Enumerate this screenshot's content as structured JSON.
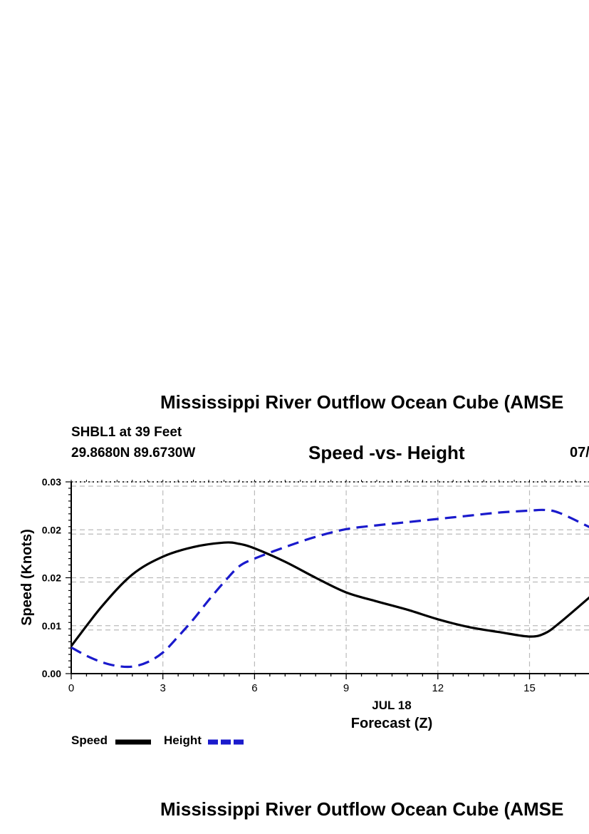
{
  "header": {
    "title": "Mississippi River Outflow Ocean Cube (AMSE",
    "station": "SHBL1 at 39 Feet",
    "coords": "29.8680N  89.6730W",
    "chart_title": "Speed -vs- Height",
    "date_fragment": "07/"
  },
  "footer": {
    "title": "Mississippi River Outflow Ocean Cube (AMSE"
  },
  "legend": {
    "speed_label": "Speed",
    "height_label": "Height"
  },
  "colors": {
    "speed": "#000000",
    "height": "#1a1acc",
    "grid": "#bbbbbb"
  },
  "chart_data": {
    "type": "line",
    "title": "Speed -vs- Height",
    "xlabel": "Forecast (Z)",
    "xlabel_date": "JUL 18",
    "ylabel": "Speed (Knots)",
    "xlim": [
      0,
      17.1
    ],
    "ylim": [
      0,
      0.03
    ],
    "x_ticks": [
      0,
      3,
      6,
      9,
      12,
      15
    ],
    "y_ticks": [
      0.0,
      0.0075,
      0.015,
      0.0225,
      0.03
    ],
    "y_tick_labels": [
      "0.00",
      "0.01",
      "0.02",
      "0.02",
      "0.03"
    ],
    "grid": true,
    "legend_position": "bottom-left",
    "series": [
      {
        "name": "Speed",
        "style": "solid",
        "x": [
          0,
          1,
          2,
          3,
          4,
          5,
          5.5,
          6,
          7,
          8,
          9,
          10,
          11,
          12,
          13,
          14,
          15,
          15.5,
          16,
          17.1
        ],
        "y": [
          0.0043,
          0.0105,
          0.0155,
          0.0183,
          0.0198,
          0.0205,
          0.0203,
          0.0196,
          0.0175,
          0.015,
          0.0127,
          0.0113,
          0.01,
          0.0085,
          0.0073,
          0.0065,
          0.0058,
          0.0063,
          0.008,
          0.0125
        ]
      },
      {
        "name": "Height",
        "style": "dashed",
        "x": [
          0,
          0.5,
          1,
          1.5,
          2,
          2.5,
          3,
          3.5,
          4,
          4.5,
          5,
          5.5,
          6,
          7,
          8,
          9,
          10,
          11,
          12,
          13,
          14,
          15,
          15.5,
          16,
          17.1
        ],
        "y": [
          0.0041,
          0.0028,
          0.0018,
          0.0012,
          0.0011,
          0.0018,
          0.0033,
          0.0058,
          0.0085,
          0.0115,
          0.0143,
          0.0168,
          0.018,
          0.0198,
          0.0214,
          0.0226,
          0.0232,
          0.0237,
          0.0242,
          0.0247,
          0.0252,
          0.0255,
          0.0256,
          0.0251,
          0.0226
        ]
      }
    ]
  }
}
